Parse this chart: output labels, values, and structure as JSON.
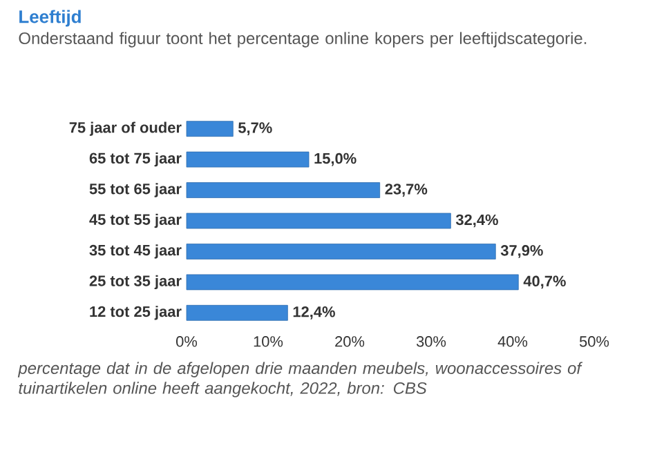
{
  "chart_data": {
    "type": "bar",
    "orientation": "horizontal",
    "title": "Leeftijd",
    "subtitle": "Onderstaand figuur toont het percentage online kopers per leeftijdscategorie.",
    "categories": [
      "75 jaar of ouder",
      "65 tot 75 jaar",
      "55 tot 65 jaar",
      "45 tot 55 jaar",
      "35 tot 45 jaar",
      "25 tot 35 jaar",
      "12 tot 25 jaar"
    ],
    "values": [
      5.7,
      15.0,
      23.7,
      32.4,
      37.9,
      40.7,
      12.4
    ],
    "value_labels": [
      "5,7%",
      "15,0%",
      "23,7%",
      "32,4%",
      "37,9%",
      "40,7%",
      "12,4%"
    ],
    "color": "#3a87d8",
    "xlim": [
      0,
      50
    ],
    "xticks": [
      {
        "value": 0,
        "label": "0%"
      },
      {
        "value": 10,
        "label": "10%"
      },
      {
        "value": 20,
        "label": "20%"
      },
      {
        "value": 30,
        "label": "30%"
      },
      {
        "value": 40,
        "label": "40%"
      },
      {
        "value": 50,
        "label": "50%"
      }
    ],
    "annotations": [
      "*percentage dat in de afgelopen drie maanden meubels, woonaccessoires of tuinartikelen online heeft aangekocht, 2022, bron: CBS*"
    ]
  }
}
